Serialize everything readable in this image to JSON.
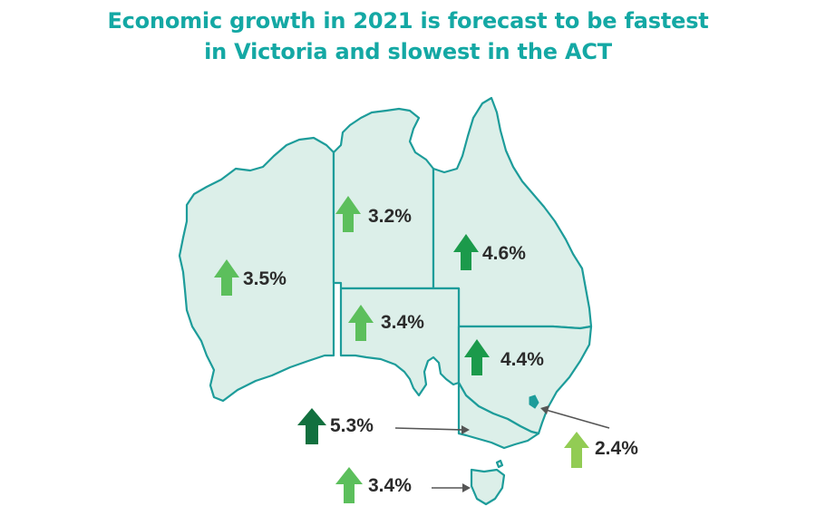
{
  "title": {
    "line1": "Economic growth in 2021 is forecast to be fastest",
    "line2": "in Victoria and slowest in the ACT"
  },
  "colors": {
    "title": "#14a8a4",
    "land": "#dcefe9",
    "border": "#1d9c9a",
    "arrow_dark": "#12703f",
    "arrow_mid": "#1b9a4b",
    "arrow_light": "#5cbf5c",
    "arrow_pale": "#92cc54"
  },
  "regions": [
    {
      "id": "wa",
      "label": "3.5%",
      "value": 3.5,
      "arrow": "up",
      "arrow_color": "arrow_light"
    },
    {
      "id": "nt",
      "label": "3.2%",
      "value": 3.2,
      "arrow": "up",
      "arrow_color": "arrow_light"
    },
    {
      "id": "qld",
      "label": "4.6%",
      "value": 4.6,
      "arrow": "up",
      "arrow_color": "arrow_mid"
    },
    {
      "id": "sa",
      "label": "3.4%",
      "value": 3.4,
      "arrow": "up",
      "arrow_color": "arrow_light"
    },
    {
      "id": "nsw",
      "label": "4.4%",
      "value": 4.4,
      "arrow": "up",
      "arrow_color": "arrow_mid"
    },
    {
      "id": "vic",
      "label": "5.3%",
      "value": 5.3,
      "arrow": "up",
      "arrow_color": "arrow_dark"
    },
    {
      "id": "tas",
      "label": "3.4%",
      "value": 3.4,
      "arrow": "up",
      "arrow_color": "arrow_light"
    },
    {
      "id": "act",
      "label": "2.4%",
      "value": 2.4,
      "arrow": "up",
      "arrow_color": "arrow_pale"
    }
  ]
}
